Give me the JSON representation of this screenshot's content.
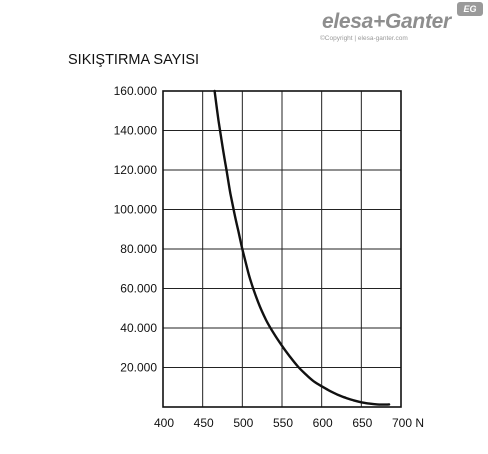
{
  "brand": {
    "name": "elesa+Ganter",
    "badge": "EG",
    "copyright": "©Copyright | elesa-ganter.com"
  },
  "chart_data": {
    "type": "line",
    "title": "SIKIŞTIRMA SAYISI",
    "xlabel": "",
    "ylabel": "",
    "x_unit": "N",
    "xlim": [
      400,
      700
    ],
    "ylim": [
      0,
      160000
    ],
    "grid": true,
    "legend": "none",
    "x_ticks": [
      400,
      450,
      500,
      550,
      600,
      650,
      700
    ],
    "x_tick_labels": [
      "400",
      "450",
      "500",
      "550",
      "600",
      "650",
      "700 N"
    ],
    "y_ticks": [
      20000,
      40000,
      60000,
      80000,
      100000,
      120000,
      140000,
      160000
    ],
    "y_tick_labels": [
      "20.000",
      "40.000",
      "60.000",
      "80.000",
      "100.000",
      "120.000",
      "140.000",
      "160.000"
    ],
    "series": [
      {
        "color": "#111111",
        "points": [
          [
            465,
            160000
          ],
          [
            470,
            145000
          ],
          [
            475,
            132000
          ],
          [
            480,
            120000
          ],
          [
            485,
            108000
          ],
          [
            490,
            98000
          ],
          [
            495,
            89000
          ],
          [
            500,
            80000
          ],
          [
            505,
            72000
          ],
          [
            510,
            64500
          ],
          [
            520,
            53000
          ],
          [
            530,
            44000
          ],
          [
            540,
            37000
          ],
          [
            550,
            31000
          ],
          [
            560,
            25500
          ],
          [
            570,
            20500
          ],
          [
            580,
            16500
          ],
          [
            590,
            13000
          ],
          [
            600,
            10500
          ],
          [
            610,
            8200
          ],
          [
            620,
            6300
          ],
          [
            630,
            4700
          ],
          [
            640,
            3400
          ],
          [
            650,
            2400
          ],
          [
            660,
            1700
          ],
          [
            670,
            1300
          ],
          [
            680,
            1200
          ],
          [
            685,
            1300
          ]
        ]
      }
    ]
  }
}
